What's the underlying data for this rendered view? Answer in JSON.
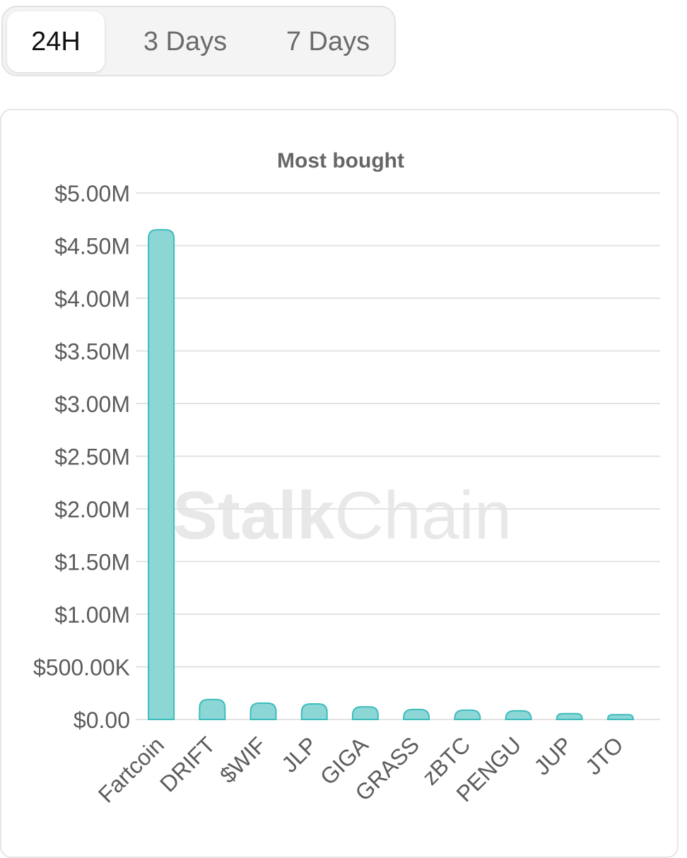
{
  "tabs": [
    {
      "label": "24H",
      "active": true
    },
    {
      "label": "3 Days",
      "active": false
    },
    {
      "label": "7 Days",
      "active": false
    }
  ],
  "watermark": {
    "bold": "Stalk",
    "light": "Chain"
  },
  "colors": {
    "bar_fill": "#8dd6d6",
    "bar_stroke": "#3dbcbc",
    "grid": "#e3e3e3",
    "tick_text": "#5c5c5c",
    "title_text": "#666666",
    "watermark": "#e8e8e8"
  },
  "chart_data": {
    "type": "bar",
    "title": "Most bought",
    "xlabel": "",
    "ylabel": "",
    "ylim": [
      0,
      5000000
    ],
    "grid": true,
    "legend": "none",
    "yticks": [
      {
        "value": 0,
        "label": "$0.00"
      },
      {
        "value": 500000,
        "label": "$500.00K"
      },
      {
        "value": 1000000,
        "label": "$1.00M"
      },
      {
        "value": 1500000,
        "label": "$1.50M"
      },
      {
        "value": 2000000,
        "label": "$2.00M"
      },
      {
        "value": 2500000,
        "label": "$2.50M"
      },
      {
        "value": 3000000,
        "label": "$3.00M"
      },
      {
        "value": 3500000,
        "label": "$3.50M"
      },
      {
        "value": 4000000,
        "label": "$4.00M"
      },
      {
        "value": 4500000,
        "label": "$4.50M"
      },
      {
        "value": 5000000,
        "label": "$5.00M"
      }
    ],
    "categories": [
      "Fartcoin",
      "DRIFT",
      "$WIF",
      "JLP",
      "GIGA",
      "GRASS",
      "zBTC",
      "PENGU",
      "JUP",
      "JTO"
    ],
    "values": [
      4650000,
      190000,
      155000,
      148000,
      120000,
      95000,
      88000,
      82000,
      55000,
      45000
    ]
  }
}
